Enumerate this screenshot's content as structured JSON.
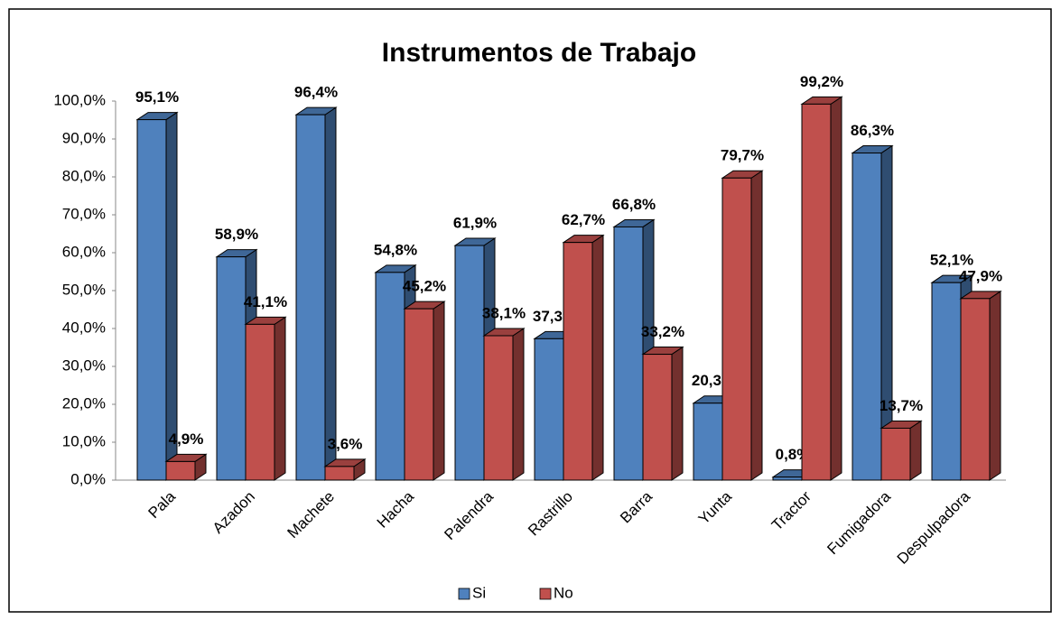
{
  "chart_data": {
    "type": "bar3d",
    "title": "Instrumentos de Trabajo",
    "categories": [
      "Pala",
      "Azadon",
      "Machete",
      "Hacha",
      "Palendra",
      "Rastrillo",
      "Barra",
      "Yunta",
      "Tractor",
      "Fumigadora",
      "Despulpadora"
    ],
    "series": [
      {
        "name": "Si",
        "color": "#4f81bd",
        "values": [
          95.1,
          58.9,
          96.4,
          54.8,
          61.9,
          37.3,
          66.8,
          20.3,
          0.8,
          86.3,
          52.1
        ],
        "value_labels": [
          "95,1%",
          "58,9%",
          "96,4%",
          "54,8%",
          "61,9%",
          "37,3%",
          "66,8%",
          "20,3%",
          "0,8%",
          "86,3%",
          "52,1%"
        ]
      },
      {
        "name": "No",
        "color": "#c0504d",
        "values": [
          4.9,
          41.1,
          3.6,
          45.2,
          38.1,
          62.7,
          33.2,
          79.7,
          99.2,
          13.7,
          47.9
        ],
        "value_labels": [
          "4,9%",
          "41,1%",
          "3,6%",
          "45,2%",
          "38,1%",
          "62,7%",
          "33,2%",
          "79,7%",
          "99,2%",
          "13,7%",
          "47,9%"
        ]
      }
    ],
    "ylim": [
      0,
      100
    ],
    "yticks": [
      {
        "value": 0,
        "label": "0,0%"
      },
      {
        "value": 10,
        "label": "10,0%"
      },
      {
        "value": 20,
        "label": "20,0%"
      },
      {
        "value": 30,
        "label": "30,0%"
      },
      {
        "value": 40,
        "label": "40,0%"
      },
      {
        "value": 50,
        "label": "50,0%"
      },
      {
        "value": 60,
        "label": "60,0%"
      },
      {
        "value": 70,
        "label": "70,0%"
      },
      {
        "value": 80,
        "label": "80,0%"
      },
      {
        "value": 90,
        "label": "90,0%"
      },
      {
        "value": 100,
        "label": "100,0%"
      }
    ],
    "legend": "bottom"
  }
}
